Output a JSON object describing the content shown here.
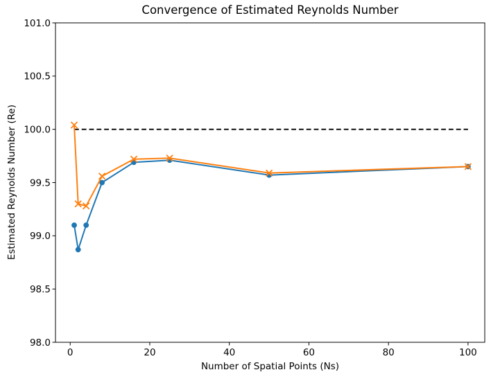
{
  "chart_data": {
    "type": "line",
    "title": "Convergence of Estimated Reynolds Number",
    "xlabel": "Number of Spatial Points (Ns)",
    "ylabel": "Estimated Reynolds Number (Re)",
    "x": [
      1,
      2,
      4,
      8,
      16,
      25,
      50,
      100
    ],
    "series": [
      {
        "marker": "circle",
        "color": "#1f77b4",
        "values": [
          99.1,
          98.87,
          99.1,
          99.5,
          99.69,
          99.71,
          99.57,
          99.65
        ]
      },
      {
        "marker": "x",
        "color": "#ff7f0e",
        "values": [
          100.04,
          99.3,
          99.28,
          99.56,
          99.72,
          99.73,
          99.59,
          99.65
        ]
      }
    ],
    "reference_line": {
      "value": 100.0,
      "x_start": 1,
      "x_end": 100,
      "style": "dashed",
      "color": "#000000"
    },
    "xlim": [
      -3.7,
      104.2
    ],
    "ylim": [
      98.0,
      101.0
    ],
    "xticks": [
      {
        "value": 0,
        "label": "0"
      },
      {
        "value": 20,
        "label": "20"
      },
      {
        "value": 40,
        "label": "40"
      },
      {
        "value": 60,
        "label": "60"
      },
      {
        "value": 80,
        "label": "80"
      },
      {
        "value": 100,
        "label": "100"
      }
    ],
    "yticks": [
      {
        "value": 98.0,
        "label": "98.0"
      },
      {
        "value": 98.5,
        "label": "98.5"
      },
      {
        "value": 99.0,
        "label": "99.0"
      },
      {
        "value": 99.5,
        "label": "99.5"
      },
      {
        "value": 100.0,
        "label": "100.0"
      },
      {
        "value": 100.5,
        "label": "100.5"
      },
      {
        "value": 101.0,
        "label": "101.0"
      }
    ],
    "grid": false,
    "legend": "none"
  }
}
